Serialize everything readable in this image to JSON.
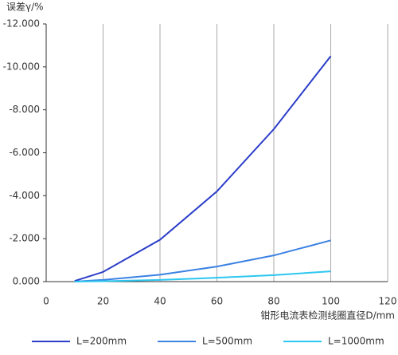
{
  "chart_data": {
    "type": "line",
    "y_label": "误差γ/%",
    "x_label": "钳形电流表检测线圈直径D/mm",
    "x": [
      10,
      20,
      40,
      60,
      80,
      100
    ],
    "series": [
      {
        "name": "L=200mm",
        "color": "#2b3dc9",
        "values": [
          -0.03,
          -0.45,
          -1.95,
          -4.2,
          -7.1,
          -10.5
        ]
      },
      {
        "name": "L=500mm",
        "color": "#3b82e3",
        "values": [
          0,
          -0.08,
          -0.32,
          -0.7,
          -1.22,
          -1.92
        ]
      },
      {
        "name": "L=1000mm",
        "color": "#2cc7f0",
        "values": [
          0,
          -0.02,
          -0.08,
          -0.18,
          -0.3,
          -0.48
        ]
      }
    ],
    "xlim": [
      0,
      120
    ],
    "xticks": [
      0,
      20,
      40,
      60,
      80,
      100,
      120
    ],
    "ylim": [
      0,
      -12
    ],
    "yticks": [
      {
        "value": 0,
        "label": "0.000"
      },
      {
        "value": -2,
        "label": "-2.000"
      },
      {
        "value": -4,
        "label": "-4.000"
      },
      {
        "value": -6,
        "label": "-6.000"
      },
      {
        "value": -8,
        "label": "-8.000"
      },
      {
        "value": -10,
        "label": "-10.000"
      },
      {
        "value": -12,
        "label": "-12.000"
      }
    ],
    "grid": "x",
    "legend": "bottom"
  }
}
